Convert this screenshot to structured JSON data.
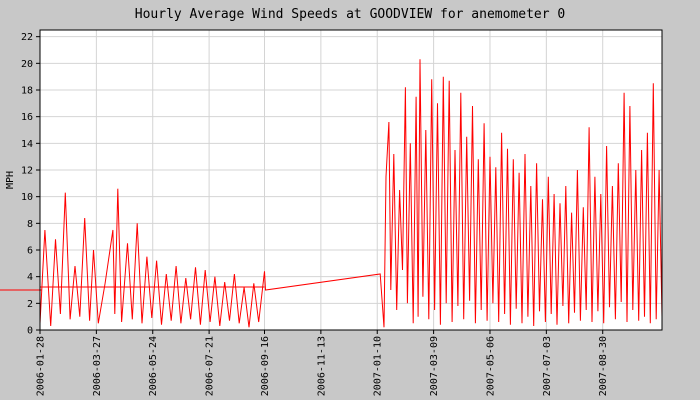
{
  "chart_data": {
    "type": "line",
    "title": "Hourly Average Wind Speeds at GOODVIEW for anemometer 0",
    "xlabel": "",
    "ylabel": "MPH",
    "ylim": [
      0,
      22.5
    ],
    "y_ticks": [
      0,
      2,
      4,
      6,
      8,
      10,
      12,
      14,
      16,
      18,
      20,
      22
    ],
    "x_ticks": [
      "2006-01-28",
      "2006-03-27",
      "2006-05-24",
      "2006-07-21",
      "2006-09-16",
      "2006-11-13",
      "2007-01-10",
      "2007-03-09",
      "2007-05-06",
      "2007-07-03",
      "2007-08-30"
    ],
    "xlim": [
      "2006-01-28",
      "2007-10-30"
    ],
    "grid": true,
    "legend": "none",
    "reference_line": {
      "value": 3.0
    },
    "series": [
      {
        "color": "#ff0000",
        "points": [
          [
            "2006-01-28",
            0.5
          ],
          [
            "2006-02-02",
            7.5
          ],
          [
            "2006-02-08",
            0.3
          ],
          [
            "2006-02-13",
            6.8
          ],
          [
            "2006-02-18",
            1.2
          ],
          [
            "2006-02-23",
            10.3
          ],
          [
            "2006-02-28",
            0.8
          ],
          [
            "2006-03-05",
            4.8
          ],
          [
            "2006-03-10",
            1.0
          ],
          [
            "2006-03-15",
            8.4
          ],
          [
            "2006-03-20",
            0.7
          ],
          [
            "2006-03-24",
            6.0
          ],
          [
            "2006-03-29",
            0.5
          ],
          [
            "2006-04-05",
            3.5
          ],
          [
            "2006-04-13",
            7.5
          ],
          [
            "2006-04-15",
            1.2
          ],
          [
            "2006-04-18",
            10.6
          ],
          [
            "2006-04-22",
            0.6
          ],
          [
            "2006-04-28",
            6.5
          ],
          [
            "2006-05-03",
            0.8
          ],
          [
            "2006-05-08",
            8.0
          ],
          [
            "2006-05-13",
            0.5
          ],
          [
            "2006-05-18",
            5.5
          ],
          [
            "2006-05-23",
            0.9
          ],
          [
            "2006-05-28",
            5.2
          ],
          [
            "2006-06-02",
            0.4
          ],
          [
            "2006-06-07",
            4.2
          ],
          [
            "2006-06-12",
            0.7
          ],
          [
            "2006-06-17",
            4.8
          ],
          [
            "2006-06-22",
            0.5
          ],
          [
            "2006-06-27",
            3.9
          ],
          [
            "2006-07-02",
            0.8
          ],
          [
            "2006-07-07",
            4.7
          ],
          [
            "2006-07-12",
            0.4
          ],
          [
            "2006-07-17",
            4.5
          ],
          [
            "2006-07-22",
            0.6
          ],
          [
            "2006-07-27",
            4.0
          ],
          [
            "2006-08-01",
            0.3
          ],
          [
            "2006-08-06",
            3.6
          ],
          [
            "2006-08-11",
            0.7
          ],
          [
            "2006-08-16",
            4.2
          ],
          [
            "2006-08-21",
            0.5
          ],
          [
            "2006-08-26",
            3.2
          ],
          [
            "2006-08-31",
            0.2
          ],
          [
            "2006-09-05",
            3.5
          ],
          [
            "2006-09-10",
            0.6
          ],
          [
            "2006-09-16",
            4.4
          ],
          [
            "2006-09-17",
            3.0
          ],
          [
            "2007-01-13",
            4.2
          ],
          [
            "2007-01-17",
            0.2
          ],
          [
            "2007-01-19",
            11.5
          ],
          [
            "2007-01-22",
            15.6
          ],
          [
            "2007-01-24",
            3.0
          ],
          [
            "2007-01-27",
            13.2
          ],
          [
            "2007-01-30",
            1.5
          ],
          [
            "2007-02-02",
            10.5
          ],
          [
            "2007-02-05",
            4.5
          ],
          [
            "2007-02-08",
            18.2
          ],
          [
            "2007-02-10",
            2.0
          ],
          [
            "2007-02-13",
            14.0
          ],
          [
            "2007-02-16",
            0.5
          ],
          [
            "2007-02-19",
            17.5
          ],
          [
            "2007-02-21",
            1.0
          ],
          [
            "2007-02-23",
            20.3
          ],
          [
            "2007-02-26",
            2.5
          ],
          [
            "2007-03-01",
            15.0
          ],
          [
            "2007-03-04",
            0.8
          ],
          [
            "2007-03-07",
            18.8
          ],
          [
            "2007-03-10",
            1.5
          ],
          [
            "2007-03-13",
            17.0
          ],
          [
            "2007-03-16",
            0.4
          ],
          [
            "2007-03-19",
            19.0
          ],
          [
            "2007-03-22",
            2.0
          ],
          [
            "2007-03-25",
            18.7
          ],
          [
            "2007-03-28",
            0.6
          ],
          [
            "2007-03-31",
            13.5
          ],
          [
            "2007-04-03",
            1.8
          ],
          [
            "2007-04-06",
            17.8
          ],
          [
            "2007-04-09",
            0.8
          ],
          [
            "2007-04-12",
            14.5
          ],
          [
            "2007-04-15",
            2.2
          ],
          [
            "2007-04-18",
            16.8
          ],
          [
            "2007-04-21",
            0.5
          ],
          [
            "2007-04-24",
            12.8
          ],
          [
            "2007-04-27",
            1.5
          ],
          [
            "2007-04-30",
            15.5
          ],
          [
            "2007-05-03",
            0.7
          ],
          [
            "2007-05-06",
            13.0
          ],
          [
            "2007-05-09",
            2.0
          ],
          [
            "2007-05-12",
            12.2
          ],
          [
            "2007-05-15",
            0.6
          ],
          [
            "2007-05-18",
            14.8
          ],
          [
            "2007-05-21",
            1.2
          ],
          [
            "2007-05-24",
            13.6
          ],
          [
            "2007-05-27",
            0.4
          ],
          [
            "2007-05-30",
            12.8
          ],
          [
            "2007-06-02",
            1.6
          ],
          [
            "2007-06-05",
            11.8
          ],
          [
            "2007-06-08",
            0.5
          ],
          [
            "2007-06-11",
            13.2
          ],
          [
            "2007-06-14",
            1.0
          ],
          [
            "2007-06-17",
            10.8
          ],
          [
            "2007-06-20",
            0.3
          ],
          [
            "2007-06-23",
            12.5
          ],
          [
            "2007-06-26",
            1.4
          ],
          [
            "2007-06-29",
            9.8
          ],
          [
            "2007-07-02",
            0.6
          ],
          [
            "2007-07-05",
            11.5
          ],
          [
            "2007-07-08",
            1.2
          ],
          [
            "2007-07-11",
            10.2
          ],
          [
            "2007-07-14",
            0.4
          ],
          [
            "2007-07-17",
            9.5
          ],
          [
            "2007-07-20",
            1.8
          ],
          [
            "2007-07-23",
            10.8
          ],
          [
            "2007-07-26",
            0.5
          ],
          [
            "2007-07-29",
            8.8
          ],
          [
            "2007-08-01",
            1.3
          ],
          [
            "2007-08-04",
            12.0
          ],
          [
            "2007-08-07",
            0.7
          ],
          [
            "2007-08-10",
            9.2
          ],
          [
            "2007-08-13",
            1.5
          ],
          [
            "2007-08-16",
            15.2
          ],
          [
            "2007-08-19",
            0.6
          ],
          [
            "2007-08-22",
            11.5
          ],
          [
            "2007-08-25",
            1.4
          ],
          [
            "2007-08-28",
            10.2
          ],
          [
            "2007-08-31",
            0.5
          ],
          [
            "2007-09-03",
            13.8
          ],
          [
            "2007-09-06",
            1.7
          ],
          [
            "2007-09-09",
            10.8
          ],
          [
            "2007-09-12",
            0.8
          ],
          [
            "2007-09-15",
            12.5
          ],
          [
            "2007-09-18",
            2.1
          ],
          [
            "2007-09-21",
            17.8
          ],
          [
            "2007-09-24",
            0.6
          ],
          [
            "2007-09-27",
            16.8
          ],
          [
            "2007-09-30",
            1.5
          ],
          [
            "2007-10-03",
            12.0
          ],
          [
            "2007-10-06",
            0.7
          ],
          [
            "2007-10-09",
            13.5
          ],
          [
            "2007-10-12",
            1.0
          ],
          [
            "2007-10-15",
            14.8
          ],
          [
            "2007-10-18",
            0.5
          ],
          [
            "2007-10-21",
            18.5
          ],
          [
            "2007-10-24",
            0.8
          ],
          [
            "2007-10-27",
            12.0
          ],
          [
            "2007-10-30",
            1.0
          ]
        ]
      }
    ]
  }
}
